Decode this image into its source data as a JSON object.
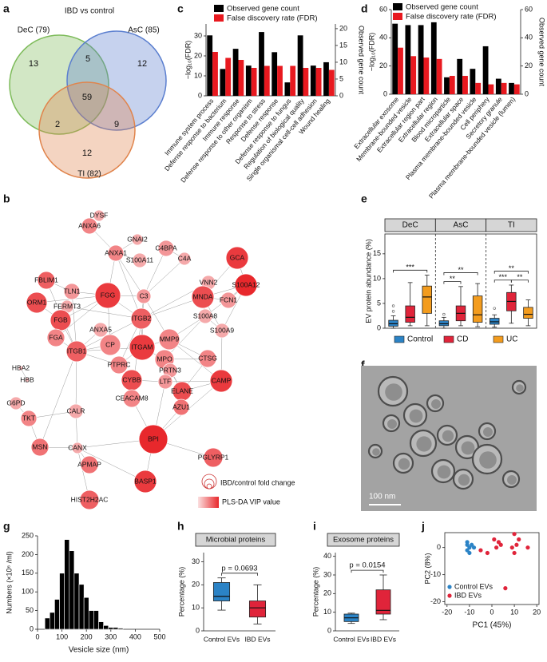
{
  "panel_labels": [
    "a",
    "b",
    "c",
    "d",
    "e",
    "f",
    "g",
    "h",
    "i",
    "j"
  ],
  "chart_data": [
    {
      "type": "venn",
      "title": "IBD vs control",
      "sets": [
        {
          "name": "DeC (79)",
          "color": "#7dbb5a"
        },
        {
          "name": "AsC (85)",
          "color": "#5b7fcf"
        },
        {
          "name": "TI (82)",
          "color": "#e0844c"
        }
      ],
      "values": [
        13,
        5,
        12,
        59,
        2,
        9,
        12
      ]
    },
    {
      "type": "network",
      "nodes": [
        "DYSF",
        "ANXA6",
        "GNAI2",
        "C4BPA",
        "GCA",
        "ANXA1",
        "S100A11",
        "C4A",
        "FBLIM1",
        "VNN2",
        "S100A12",
        "ORM1",
        "TLN1",
        "FGG",
        "FERMT3",
        "C3",
        "MNDA",
        "FCN1",
        "FGB",
        "ITGB2",
        "S100A8",
        "FGA",
        "ANXA5",
        "CP",
        "ITGAM",
        "MMP9",
        "S100A9",
        "ITGB1",
        "HBA2",
        "PTPRC",
        "MPO",
        "PRTN3",
        "HBB",
        "CTSG",
        "CYBB",
        "LTF",
        "ELANE",
        "CAMP",
        "G6PD",
        "CEACAM8",
        "AZU1",
        "CALR",
        "TKT",
        "BPI",
        "PGLYRP1",
        "MSN",
        "CANX",
        "APMAP",
        "BASP1",
        "HIST2H2AC"
      ],
      "size_legend": "IBD/control fold change",
      "color_legend": "PLS-DA VIP value"
    },
    {
      "type": "bar",
      "categories": [
        "Immune system process",
        "Defense response to bacterium",
        "Immune response",
        "Defense response to other organism",
        "Response to stress",
        "Defense response",
        "Defense response to fungus",
        "Regulation of biological quality",
        "Single organismal cell-cell adhesion",
        "Wound healing"
      ],
      "series": [
        {
          "name": "Observed gene count",
          "color": "#000000",
          "axis": "y2",
          "values": [
            18,
            8,
            14,
            9,
            19,
            13,
            4,
            18,
            9,
            10
          ]
        },
        {
          "name": "False discovery rate (FDR)",
          "color": "#e8191f",
          "values": [
            22,
            19,
            18,
            14,
            15,
            15,
            15,
            14,
            14,
            13
          ]
        }
      ],
      "ylabel": "−log₁₀(FDR)",
      "y2label": "Observed gene count",
      "ylim": [
        0,
        36
      ],
      "yticks": [
        0,
        10,
        20,
        30
      ],
      "y2lim": [
        0,
        21.4
      ],
      "y2ticks": [
        0,
        5,
        10,
        15,
        20
      ]
    },
    {
      "type": "bar",
      "categories": [
        "Extracellular exosome",
        "Membrane-bounded vesicle",
        "Extracellular region part",
        "Extracellular region",
        "Blood microparticle",
        "Extracellular space",
        "Plasma membrane-bounded vesicle",
        "Cell periphery",
        "Secretory granule",
        "Plasma membrane-bounded vesicle (lumen)"
      ],
      "series": [
        {
          "name": "Observed gene count",
          "color": "#000000",
          "axis": "y2",
          "values": [
            50,
            49,
            49,
            51,
            12,
            25,
            18,
            34,
            11,
            8
          ]
        },
        {
          "name": "False discovery rate (FDR)",
          "color": "#e8191f",
          "values": [
            33,
            27,
            26,
            25,
            13,
            13,
            8,
            7,
            8,
            7
          ]
        }
      ],
      "ylabel": "−log₁₀(FDR)",
      "y2label": "Observed gene count",
      "ylim": [
        0,
        60
      ],
      "yticks": [
        0,
        20,
        40,
        60
      ],
      "y2lim": [
        0,
        60
      ],
      "y2ticks": [
        0,
        20,
        40,
        60
      ]
    },
    {
      "type": "box",
      "ylabel": "EV protein abundance (%)",
      "categories": [
        "DeC",
        "AsC",
        "TI"
      ],
      "series": [
        {
          "name": "Control",
          "color": "#2b83c6",
          "values": [
            {
              "min": 0,
              "q1": 0.4,
              "median": 0.9,
              "q3": 1.6,
              "max": 2.5,
              "outliers": [
                3.4,
                4.5
              ]
            },
            {
              "min": 0,
              "q1": 0.5,
              "median": 0.9,
              "q3": 1.5,
              "max": 2.2,
              "outliers": [
                2.8
              ]
            },
            {
              "min": 0.2,
              "q1": 0.8,
              "median": 1.3,
              "q3": 2,
              "max": 2.7,
              "outliers": [
                4
              ]
            }
          ]
        },
        {
          "name": "CD",
          "color": "#e0243a",
          "values": [
            {
              "min": 0.5,
              "q1": 1.2,
              "median": 2.2,
              "q3": 4.5,
              "max": 9.2
            },
            {
              "min": 0.5,
              "q1": 1.5,
              "median": 3,
              "q3": 4.5,
              "max": 8.4
            },
            {
              "min": 1,
              "q1": 3.5,
              "median": 5.4,
              "q3": 7.2,
              "max": 8.7
            }
          ]
        },
        {
          "name": "UC",
          "color": "#f39c1e",
          "values": [
            {
              "min": 0.5,
              "q1": 3,
              "median": 6.3,
              "q3": 8.5,
              "max": 10.7
            },
            {
              "min": 0.3,
              "q1": 1.2,
              "median": 2.7,
              "q3": 6.5,
              "max": 9
            },
            {
              "min": 0.5,
              "q1": 2,
              "median": 2.8,
              "q3": 4.2,
              "max": 5.7
            }
          ]
        }
      ],
      "annotations": [
        {
          "text": "***",
          "category": "DeC",
          "between": [
            "Control",
            "UC"
          ]
        },
        {
          "text": "**",
          "category": "AsC",
          "between": [
            "Control",
            "CD"
          ]
        },
        {
          "text": "**",
          "category": "AsC",
          "between": [
            "Control",
            "UC"
          ]
        },
        {
          "text": "***",
          "category": "TI",
          "between": [
            "Control",
            "CD"
          ]
        },
        {
          "text": "**",
          "category": "TI",
          "between": [
            "CD",
            "UC"
          ]
        },
        {
          "text": "**",
          "category": "TI",
          "between": [
            "Control",
            "UC"
          ]
        }
      ],
      "ylim": [
        0,
        19
      ],
      "yticks": [
        0,
        5,
        10,
        15
      ],
      "legend": "bottom"
    },
    {
      "type": "image",
      "scale_bar": "100 nm"
    },
    {
      "type": "histogram",
      "xlabel": "Vesicle size (nm)",
      "ylabel": "Numbers (×10⁶ /ml)",
      "bins": [
        30,
        50,
        70,
        90,
        110,
        130,
        150,
        170,
        190,
        210,
        230,
        250,
        270,
        290,
        310,
        330,
        350
      ],
      "values": [
        30,
        45,
        80,
        150,
        240,
        210,
        150,
        120,
        85,
        50,
        50,
        20,
        10,
        5,
        5,
        3
      ],
      "color": "#000000",
      "xlim": [
        0,
        500
      ],
      "xticks": [
        0,
        100,
        200,
        300,
        400,
        500
      ],
      "ylim": [
        0,
        250
      ],
      "yticks": [
        0,
        50,
        100,
        150,
        200,
        250
      ]
    },
    {
      "type": "box",
      "title": "Microbial proteins",
      "ylabel": "Percentage (%)",
      "categories": [
        "Control EVs",
        "IBD EVs"
      ],
      "colors": [
        "#2b83c6",
        "#e0243a"
      ],
      "values": [
        {
          "min": 9,
          "q1": 13,
          "median": 15,
          "q3": 21,
          "max": 23
        },
        {
          "min": 3,
          "q1": 6,
          "median": 10,
          "q3": 13,
          "max": 20
        }
      ],
      "annotation": "p = 0.0693",
      "ylim": [
        0,
        34
      ],
      "yticks": [
        0,
        10,
        20,
        30
      ]
    },
    {
      "type": "box",
      "title": "Exosome proteins",
      "ylabel": "Percentage (%)",
      "categories": [
        "Control EVs",
        "IBD EVs"
      ],
      "colors": [
        "#2b83c6",
        "#e0243a"
      ],
      "values": [
        {
          "min": 4,
          "q1": 5,
          "median": 7,
          "q3": 9,
          "max": 9.5
        },
        {
          "min": 6,
          "q1": 9,
          "median": 11,
          "q3": 22,
          "max": 30
        }
      ],
      "annotation": "p = 0.0154",
      "ylim": [
        0,
        42
      ],
      "yticks": [
        0,
        10,
        20,
        30,
        40
      ]
    },
    {
      "type": "scatter",
      "xlabel": "PC1 (45%)",
      "ylabel": "PC2 (8%)",
      "series": [
        {
          "name": "Control EVs",
          "color": "#2b83c6",
          "x": [
            -11,
            -11,
            -10,
            -10,
            -8,
            -11,
            -9
          ],
          "values": [
            2,
            1,
            0,
            -2,
            0,
            -1,
            1
          ]
        },
        {
          "name": "IBD EVs",
          "color": "#e0243a",
          "x": [
            -5,
            -2,
            1,
            2,
            4,
            3,
            6,
            9,
            10,
            11,
            12,
            16,
            10
          ],
          "values": [
            -1,
            -2,
            3,
            0,
            1,
            2,
            -15,
            0,
            5,
            1,
            3,
            0,
            -2
          ]
        }
      ],
      "xlim": [
        -21,
        21
      ],
      "xticks": [
        -20,
        -10,
        0,
        10,
        20
      ],
      "ylim": [
        -21,
        5.5
      ],
      "yticks": [
        -20,
        -10,
        0
      ],
      "legend": "bottom left"
    }
  ]
}
